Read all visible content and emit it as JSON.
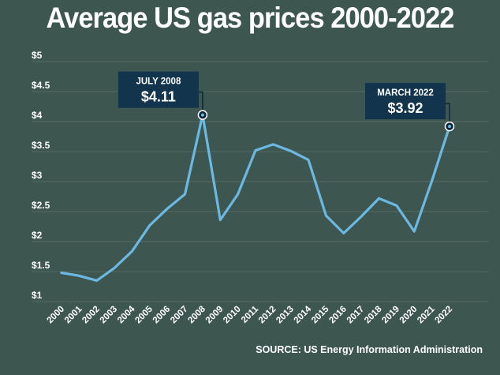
{
  "title": "Average US gas prices 2000-2022",
  "source": "SOURCE: US Energy Information Administration",
  "colors": {
    "background": "#3e5650",
    "line": "#6bb8e3",
    "grid": "#54695f",
    "annotation_box": "#12344d",
    "text": "#ffffff"
  },
  "chart_data": {
    "type": "line",
    "x": [
      "2000",
      "2001",
      "2002",
      "2003",
      "2004",
      "2005",
      "2006",
      "2007",
      "2008",
      "2009",
      "2010",
      "2011",
      "2012",
      "2013",
      "2014",
      "2015",
      "2016",
      "2017",
      "2018",
      "2019",
      "2020",
      "2021",
      "2022"
    ],
    "series": [
      {
        "values": [
          1.48,
          1.43,
          1.35,
          1.56,
          1.84,
          2.27,
          2.55,
          2.79,
          4.11,
          2.36,
          2.79,
          3.52,
          3.62,
          3.51,
          3.36,
          2.43,
          2.14,
          2.42,
          2.72,
          2.6,
          2.17,
          3.01,
          3.92
        ]
      }
    ],
    "y_ticks": [
      "$1",
      "$1.5",
      "$2",
      "$2.5",
      "$3",
      "$3.5",
      "$4",
      "$4.5",
      "$5"
    ],
    "ylim": [
      1,
      5
    ],
    "grid": true,
    "annotations": [
      {
        "x": "2008",
        "label": "JULY 2008",
        "value_label": "$4.11",
        "y": 4.11
      },
      {
        "x": "2022",
        "label": "MARCH 2022",
        "value_label": "$3.92",
        "y": 3.92
      }
    ]
  }
}
